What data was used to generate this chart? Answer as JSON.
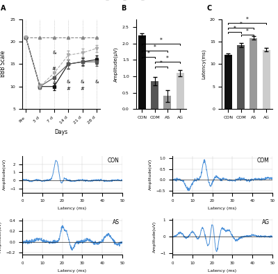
{
  "panel_A": {
    "days": [
      "Pre",
      "3 d",
      "7 d",
      "14 d",
      "21 d",
      "28 d"
    ],
    "CON": [
      21,
      21,
      21,
      21,
      21,
      21
    ],
    "COM": [
      21,
      10,
      10,
      15,
      15.5,
      16
    ],
    "AS": [
      21,
      10,
      12,
      15,
      15.5,
      15.5
    ],
    "AG": [
      21,
      10,
      13,
      17,
      17.5,
      18.5
    ],
    "CON_err": [
      0,
      0,
      0,
      0,
      0,
      0
    ],
    "COM_err": [
      0,
      0.5,
      0.8,
      1.0,
      0.8,
      0.9
    ],
    "AS_err": [
      0,
      0.5,
      1.0,
      1.0,
      0.9,
      0.9
    ],
    "AG_err": [
      0,
      0.5,
      1.0,
      1.0,
      0.9,
      0.8
    ],
    "ylim": [
      5,
      25
    ],
    "yticks": [
      5,
      10,
      15,
      20,
      25
    ],
    "xlabel": "Days",
    "ylabel": "BBB Scale",
    "symbols_amp": [
      [
        "&",
        2,
        17.5
      ],
      [
        "#",
        2,
        14.0
      ],
      [
        "&",
        3,
        11.0
      ],
      [
        "#",
        3,
        9.5
      ],
      [
        "&",
        4,
        11.0
      ],
      [
        "#",
        4,
        9.5
      ],
      [
        "&",
        5,
        11.0
      ]
    ]
  },
  "panel_B": {
    "groups": [
      "CON",
      "COM",
      "AS",
      "AG"
    ],
    "values": [
      2.25,
      0.85,
      0.4,
      1.1
    ],
    "errors": [
      0.07,
      0.12,
      0.18,
      0.1
    ],
    "colors": [
      "#0d0d0d",
      "#555555",
      "#999999",
      "#cccccc"
    ],
    "ylabel": "Amplitude(μV)",
    "ylim": [
      0.0,
      2.75
    ],
    "yticks": [
      0.0,
      0.5,
      1.0,
      1.5,
      2.0,
      2.5
    ],
    "sig_lines": [
      [
        0,
        1,
        1.55,
        0.04,
        "*"
      ],
      [
        0,
        2,
        1.75,
        0.04,
        "*"
      ],
      [
        0,
        3,
        1.95,
        0.04,
        "*"
      ],
      [
        1,
        2,
        1.25,
        0.04,
        "*"
      ],
      [
        1,
        3,
        1.4,
        0.04,
        "*"
      ]
    ]
  },
  "panel_C": {
    "groups": [
      "CON",
      "COM",
      "AS",
      "AG"
    ],
    "values": [
      12.0,
      14.2,
      15.8,
      13.2
    ],
    "errors": [
      0.3,
      0.5,
      0.4,
      0.4
    ],
    "colors": [
      "#0d0d0d",
      "#555555",
      "#999999",
      "#cccccc"
    ],
    "ylabel": "Latency(ms)",
    "ylim": [
      0,
      20
    ],
    "yticks": [
      0,
      5,
      10,
      15,
      20
    ],
    "sig_lines": [
      [
        0,
        1,
        16.8,
        0.3,
        "*"
      ],
      [
        0,
        2,
        17.8,
        0.3,
        "*"
      ],
      [
        0,
        3,
        18.8,
        0.3,
        "*"
      ],
      [
        1,
        2,
        16.2,
        0.3,
        "*"
      ]
    ]
  },
  "panel_D": {
    "CON_ylim": [
      -1.5,
      3.0
    ],
    "COM_ylim": [
      -0.6,
      1.1
    ],
    "AS_ylim": [
      -0.25,
      0.45
    ],
    "AG_ylim": [
      -1.1,
      1.1
    ],
    "CON_yticks": [
      -1,
      0,
      1,
      2
    ],
    "COM_yticks": [
      -0.5,
      0,
      0.5,
      1.0
    ],
    "AS_yticks": [
      -0.2,
      0,
      0.2,
      0.4
    ],
    "AG_yticks": [
      -1,
      0,
      1
    ],
    "xlabel": "Latency (ms)",
    "ylabel": "Amplitude(uV)",
    "xlim": [
      0,
      50
    ]
  },
  "line_color": "#4a90d9",
  "colors_A": {
    "CON": "#888888",
    "COM": "#111111",
    "AS": "#555555",
    "AG": "#aaaaaa"
  },
  "markers_A": {
    "CON": "^",
    "COM": "s",
    "AS": "s",
    "AG": "v"
  },
  "ls_A": {
    "CON": "--",
    "COM": "-",
    "AS": "-",
    "AG": "--"
  }
}
